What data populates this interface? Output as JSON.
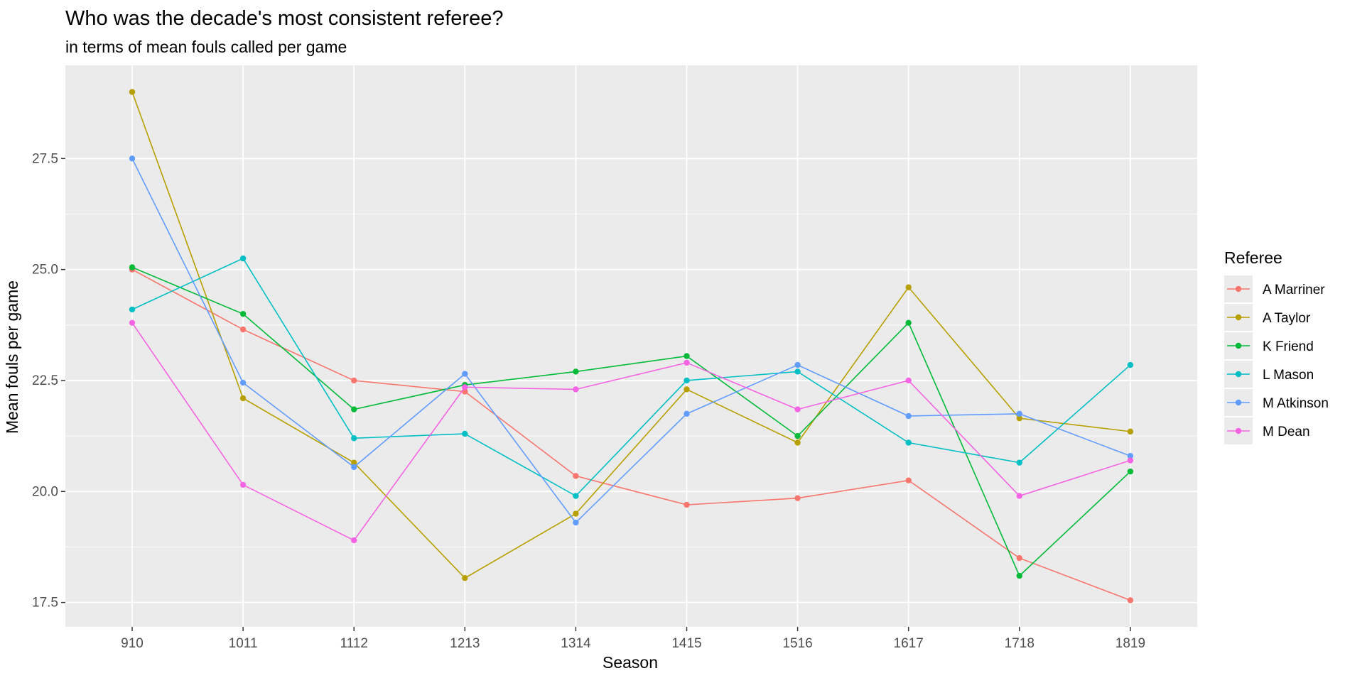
{
  "chart_data": {
    "type": "line",
    "title": "Who was the decade's most consistent referee?",
    "subtitle": "in terms of mean fouls called per game",
    "xlabel": "Season",
    "ylabel": "Mean fouls per game",
    "categories": [
      "910",
      "1011",
      "1112",
      "1213",
      "1314",
      "1415",
      "1516",
      "1617",
      "1718",
      "1819"
    ],
    "ylim": [
      16.95,
      29.6
    ],
    "yticks": [
      17.5,
      20.0,
      22.5,
      25.0,
      27.5
    ],
    "ytick_labels": [
      "17.5",
      "20.0",
      "22.5",
      "25.0",
      "27.5"
    ],
    "grid": true,
    "legend_title": "Referee",
    "legend_position": "right",
    "series": [
      {
        "name": "A Marriner",
        "color": "#F8766D",
        "values": [
          25.0,
          23.65,
          22.5,
          22.25,
          20.35,
          19.7,
          19.85,
          20.25,
          18.5,
          17.55
        ]
      },
      {
        "name": "A Taylor",
        "color": "#B79F00",
        "values": [
          29.0,
          22.1,
          20.65,
          18.05,
          19.5,
          22.3,
          21.1,
          24.6,
          21.65,
          21.35
        ]
      },
      {
        "name": "K Friend",
        "color": "#00BA38",
        "values": [
          25.05,
          24.0,
          21.85,
          22.4,
          22.7,
          23.05,
          21.25,
          23.8,
          18.1,
          20.45
        ]
      },
      {
        "name": "L Mason",
        "color": "#00BFC4",
        "values": [
          24.1,
          25.25,
          21.2,
          21.3,
          19.9,
          22.5,
          22.7,
          21.1,
          20.65,
          22.85
        ]
      },
      {
        "name": "M Atkinson",
        "color": "#619CFF",
        "values": [
          27.5,
          22.45,
          20.55,
          22.65,
          19.3,
          21.75,
          22.85,
          21.7,
          21.75,
          20.8
        ]
      },
      {
        "name": "M Dean",
        "color": "#F564E3",
        "values": [
          23.8,
          20.15,
          18.9,
          22.35,
          22.3,
          22.9,
          21.85,
          22.5,
          19.9,
          20.7
        ]
      }
    ],
    "panel_background": "#EBEBEB",
    "grid_color": "#FFFFFF"
  }
}
